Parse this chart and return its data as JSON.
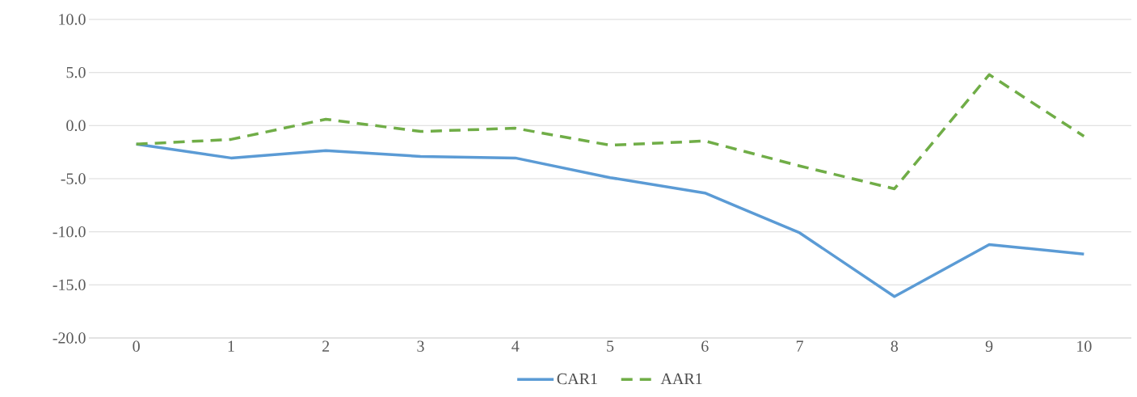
{
  "chart_data": {
    "type": "line",
    "categories": [
      "0",
      "1",
      "2",
      "3",
      "4",
      "5",
      "6",
      "7",
      "8",
      "9",
      "10"
    ],
    "series": [
      {
        "name": "CAR1",
        "color": "#5b9bd5",
        "line_style": "solid",
        "values": [
          -1.75,
          -3.05,
          -2.35,
          -2.9,
          -3.05,
          -4.9,
          -6.35,
          -10.1,
          -16.1,
          -11.2,
          -12.1
        ]
      },
      {
        "name": "AAR1",
        "color": "#70ad47",
        "line_style": "dashed",
        "values": [
          -1.75,
          -1.3,
          0.6,
          -0.55,
          -0.25,
          -1.85,
          -1.45,
          -3.8,
          -5.95,
          4.8,
          -1.0
        ]
      }
    ],
    "ylim": [
      -20,
      10
    ],
    "yticks": [
      {
        "value": -20,
        "label": "-20.0"
      },
      {
        "value": -15,
        "label": "-15.0"
      },
      {
        "value": -10,
        "label": "-10.0"
      },
      {
        "value": -5,
        "label": "-5.0"
      },
      {
        "value": 0,
        "label": "0.0"
      },
      {
        "value": 5,
        "label": "5.0"
      },
      {
        "value": 10,
        "label": "10.0"
      }
    ],
    "grid": "y",
    "legend": "bottom",
    "marker": "none"
  }
}
